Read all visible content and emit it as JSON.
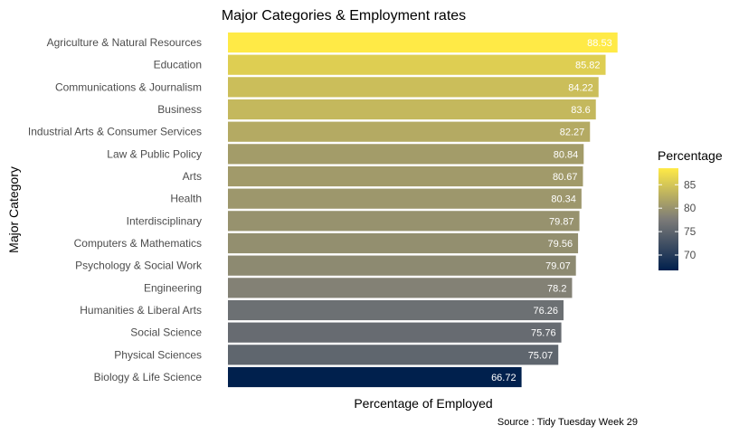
{
  "chart_data": {
    "type": "bar",
    "orientation": "horizontal",
    "title": "Major Categories & Employment rates",
    "xlabel": "Percentage of Employed",
    "ylabel": "Major Category",
    "caption": "Source : Tidy Tuesday Week 29",
    "categories": [
      "Agriculture & Natural Resources",
      "Education",
      "Communications & Journalism",
      "Business",
      "Industrial Arts & Consumer Services",
      "Law & Public Policy",
      "Arts",
      "Health",
      "Interdisciplinary",
      "Computers & Mathematics",
      "Psychology & Social Work",
      "Engineering",
      "Humanities & Liberal Arts",
      "Social Science",
      "Physical Sciences",
      "Biology & Life Science"
    ],
    "values": [
      88.53,
      85.82,
      84.22,
      83.6,
      82.27,
      80.84,
      80.67,
      80.34,
      79.87,
      79.56,
      79.07,
      78.2,
      76.26,
      75.76,
      75.07,
      66.72
    ],
    "value_labels": [
      "88.53",
      "85.82",
      "84.22",
      "83.6",
      "82.27",
      "80.84",
      "80.67",
      "80.34",
      "79.87",
      "79.56",
      "79.07",
      "78.2",
      "76.26",
      "75.76",
      "75.07",
      "66.72"
    ],
    "xlim": [
      0,
      89
    ],
    "grid": false,
    "legend": {
      "title": "Percentage",
      "placement": "right",
      "ticks": [
        70,
        75,
        80,
        85
      ],
      "range": [
        66.72,
        88.53
      ],
      "palette": [
        "#00204D",
        "#7C7B78",
        "#FFEA46"
      ]
    }
  }
}
